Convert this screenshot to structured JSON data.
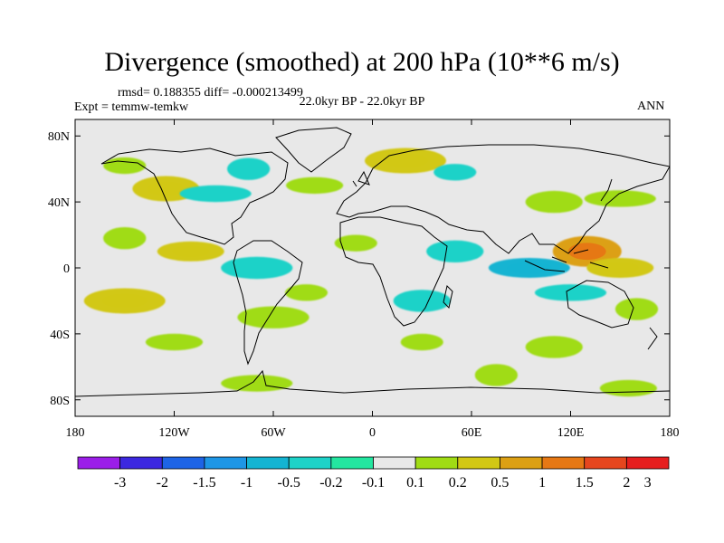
{
  "title": "Divergence (smoothed) at 200 hPa (10**6 m/s)",
  "stats": "rmsd= 0.188355  diff= -0.000213499",
  "experiment": "Expt = temmw-temkw",
  "period": "22.0kyr BP - 22.0kyr BP",
  "season": "ANN",
  "y_ticks": [
    "80N",
    "40N",
    "0",
    "40S",
    "80S"
  ],
  "x_ticks": [
    "180",
    "120W",
    "60W",
    "0",
    "60E",
    "120E",
    "180"
  ],
  "colorbar": {
    "labels": [
      "-3",
      "-2",
      "-1.5",
      "-1",
      "-0.5",
      "-0.2",
      "-0.1",
      "0.1",
      "0.2",
      "0.5",
      "1",
      "1.5",
      "2",
      "3"
    ],
    "colors": [
      "#9b1ee8",
      "#3c28e0",
      "#1e64e6",
      "#1e96e6",
      "#14b4d2",
      "#1ed2c8",
      "#23e6a0",
      "#e8e8e8",
      "#a0dc14",
      "#d2c814",
      "#dca014",
      "#e67814",
      "#e6461e",
      "#e61e1e"
    ]
  },
  "chart_data": {
    "type": "heatmap",
    "title": "Divergence (smoothed) at 200 hPa (10**6 m/s)",
    "x_range": [
      -180,
      180
    ],
    "y_range": [
      -90,
      90
    ],
    "units": "10**6 m/s",
    "levels": [
      -3,
      -2,
      -1.5,
      -1,
      -0.5,
      -0.2,
      -0.1,
      0.1,
      0.2,
      0.5,
      1,
      1.5,
      2,
      3
    ],
    "anomaly_regions": [
      {
        "lon": -150,
        "lat": 62,
        "value": 0.2
      },
      {
        "lon": -125,
        "lat": 48,
        "value": 0.5
      },
      {
        "lon": -95,
        "lat": 45,
        "value": -0.2
      },
      {
        "lon": -75,
        "lat": 60,
        "value": -0.2
      },
      {
        "lon": -35,
        "lat": 50,
        "value": 0.2
      },
      {
        "lon": 20,
        "lat": 65,
        "value": 0.5
      },
      {
        "lon": 50,
        "lat": 58,
        "value": -0.2
      },
      {
        "lon": 110,
        "lat": 40,
        "value": 0.2
      },
      {
        "lon": 150,
        "lat": 42,
        "value": 0.2
      },
      {
        "lon": -150,
        "lat": 18,
        "value": 0.2
      },
      {
        "lon": -110,
        "lat": 10,
        "value": 0.5
      },
      {
        "lon": -70,
        "lat": 0,
        "value": -0.2
      },
      {
        "lon": -10,
        "lat": 15,
        "value": 0.2
      },
      {
        "lon": 50,
        "lat": 10,
        "value": -0.2
      },
      {
        "lon": 95,
        "lat": 0,
        "value": -0.5
      },
      {
        "lon": 130,
        "lat": 10,
        "value": 1.0
      },
      {
        "lon": 150,
        "lat": 0,
        "value": 0.5
      },
      {
        "lon": -150,
        "lat": -20,
        "value": 0.5
      },
      {
        "lon": -40,
        "lat": -15,
        "value": 0.2
      },
      {
        "lon": 30,
        "lat": -20,
        "value": -0.2
      },
      {
        "lon": 120,
        "lat": -15,
        "value": -0.2
      },
      {
        "lon": 160,
        "lat": -25,
        "value": 0.2
      },
      {
        "lon": -120,
        "lat": -45,
        "value": 0.2
      },
      {
        "lon": -60,
        "lat": -30,
        "value": 0.2
      },
      {
        "lon": 30,
        "lat": -45,
        "value": 0.2
      },
      {
        "lon": 110,
        "lat": -48,
        "value": 0.2
      },
      {
        "lon": -70,
        "lat": -70,
        "value": 0.2
      },
      {
        "lon": 75,
        "lat": -65,
        "value": 0.2
      },
      {
        "lon": 155,
        "lat": -73,
        "value": 0.2
      }
    ]
  }
}
